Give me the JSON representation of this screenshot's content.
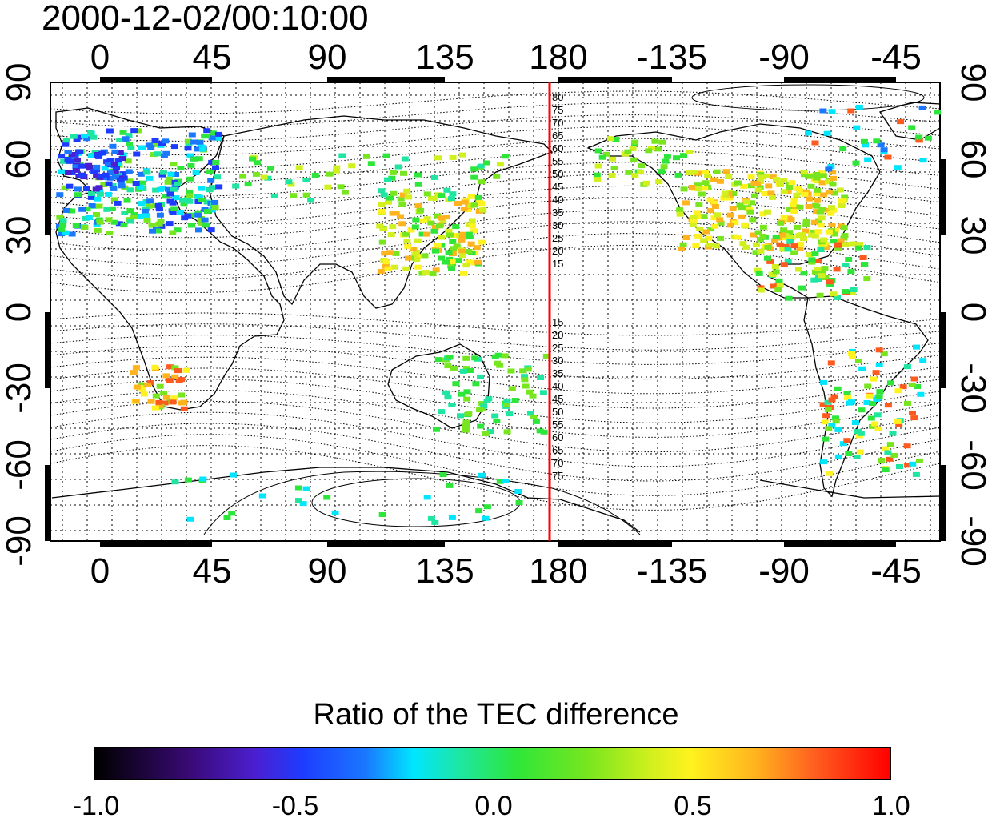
{
  "map": {
    "timestamp": "2000-12-02/00:10:00",
    "lon_ticks": [
      "0",
      "45",
      "90",
      "135",
      "180",
      "-135",
      "-90",
      "-45"
    ],
    "lat_ticks_left": [
      "90",
      "60",
      "30",
      "0",
      "-30",
      "-60",
      "-90"
    ],
    "lat_ticks_right": [
      "90",
      "60",
      "30",
      "0",
      "-30",
      "-60",
      "-90"
    ],
    "dateline_color": "#ff0000",
    "north_contour_labels": [
      "80",
      "75",
      "70",
      "65",
      "60",
      "55",
      "50",
      "45",
      "40",
      "35",
      "30",
      "25",
      "20",
      "15"
    ],
    "south_contour_labels": [
      "15",
      "20",
      "25",
      "30",
      "35",
      "40",
      "45",
      "50",
      "55",
      "60",
      "65",
      "70",
      "75"
    ]
  },
  "colorbar": {
    "title": "Ratio of the TEC difference",
    "tick_labels": [
      "-1.0",
      "-0.5",
      "0.0",
      "0.5",
      "1.0"
    ],
    "min": -1.0,
    "max": 1.0
  }
}
